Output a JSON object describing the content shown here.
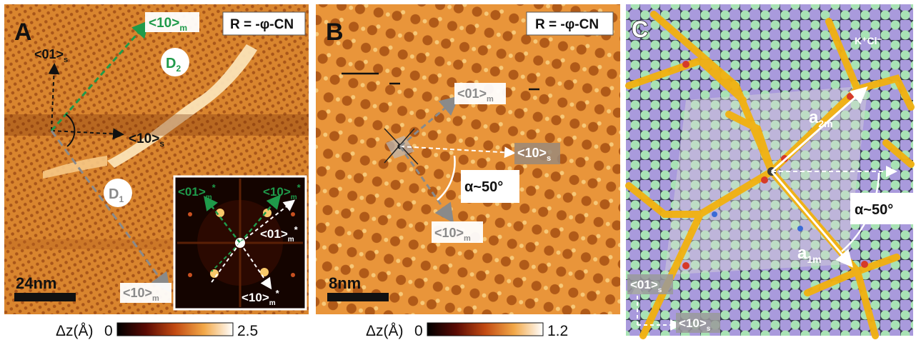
{
  "panels": {
    "A": {
      "letter": "A",
      "r_label": "R = -φ-CN",
      "dir_10m": "<10>",
      "dir_10m_sub": "m",
      "dir_01s": "<01>",
      "dir_01s_sub": "s",
      "dir_10s": "<10>",
      "dir_10s_sub": "s",
      "dir_10m_bottom": "<10>",
      "dir_10m_bottom_sub": "m",
      "domain_d1": "D",
      "domain_d1_sub": "1",
      "domain_d2": "D",
      "domain_d2_sub": "2",
      "scale": "24nm",
      "inset": {
        "l01": "<01>",
        "l01_sub": "m",
        "l01_sup": "*",
        "l10_top": "<10>",
        "l10_top_sub": "m",
        "l10_top_sup": "*",
        "l01_mid": "<01>",
        "l01_mid_sub": "m",
        "l01_mid_sup": "*",
        "l10_bot": "<10>",
        "l10_bot_sub": "m",
        "l10_bot_sup": "*"
      },
      "colorbar": {
        "label": "Δz(Å)",
        "min": "0",
        "max": "2.5"
      }
    },
    "B": {
      "letter": "B",
      "r_label": "R = -φ-CN",
      "dir_01m": "<01>",
      "dir_01m_sub": "m",
      "dir_10s": "<10>",
      "dir_10s_sub": "s",
      "dir_10m": "<10>",
      "dir_10m_sub": "m",
      "angle": "α~50°",
      "scale": "8nm",
      "colorbar": {
        "label": "Δz(Å)",
        "min": "0",
        "max": "1.2"
      }
    },
    "C": {
      "letter": "C",
      "ions": "K⁺Cl⁻",
      "a2m": "a",
      "a2m_sub": "2m",
      "a1m": "a",
      "a1m_sub": "1m",
      "angle": "α~50°",
      "dir_01s": "<01>",
      "dir_01s_sub": "s",
      "dir_10s": "<10>",
      "dir_10s_sub": "s"
    }
  },
  "colors": {
    "stm_dark": "#2a0a02",
    "stm_mid": "#c8621a",
    "stm_light": "#f7cf86",
    "green_arrow": "#1f9a4a",
    "k_ion": "#a99adc",
    "cl_ion": "#a8e2b4",
    "molecule": "#f2b10f"
  }
}
